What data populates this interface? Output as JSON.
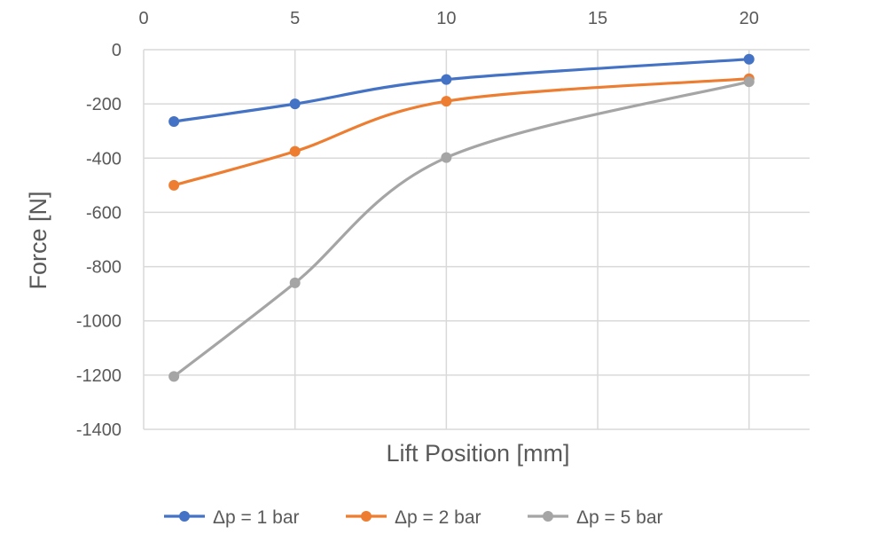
{
  "chart_data": {
    "type": "line",
    "x": [
      1,
      5,
      10,
      20
    ],
    "series": [
      {
        "name": "Δp = 1 bar",
        "values": [
          -265,
          -200,
          -110,
          -35
        ],
        "color": "#4472c4"
      },
      {
        "name": "Δp = 2 bar",
        "values": [
          -500,
          -375,
          -190,
          -107
        ],
        "color": "#ed7d31"
      },
      {
        "name": "Δp = 5 bar",
        "values": [
          -1205,
          -860,
          -398,
          -118
        ],
        "color": "#a5a5a5"
      }
    ],
    "xlabel": "Lift Position [mm]",
    "ylabel": "Force [N]",
    "xticks": [
      0,
      5,
      10,
      15,
      20
    ],
    "yticks": [
      0,
      -200,
      -400,
      -600,
      -800,
      -1000,
      -1200,
      -1400
    ],
    "xlim": [
      0,
      22
    ],
    "ylim": [
      -1400,
      0
    ],
    "x_axis_position": "top",
    "grid": true,
    "legend": "bottom"
  }
}
